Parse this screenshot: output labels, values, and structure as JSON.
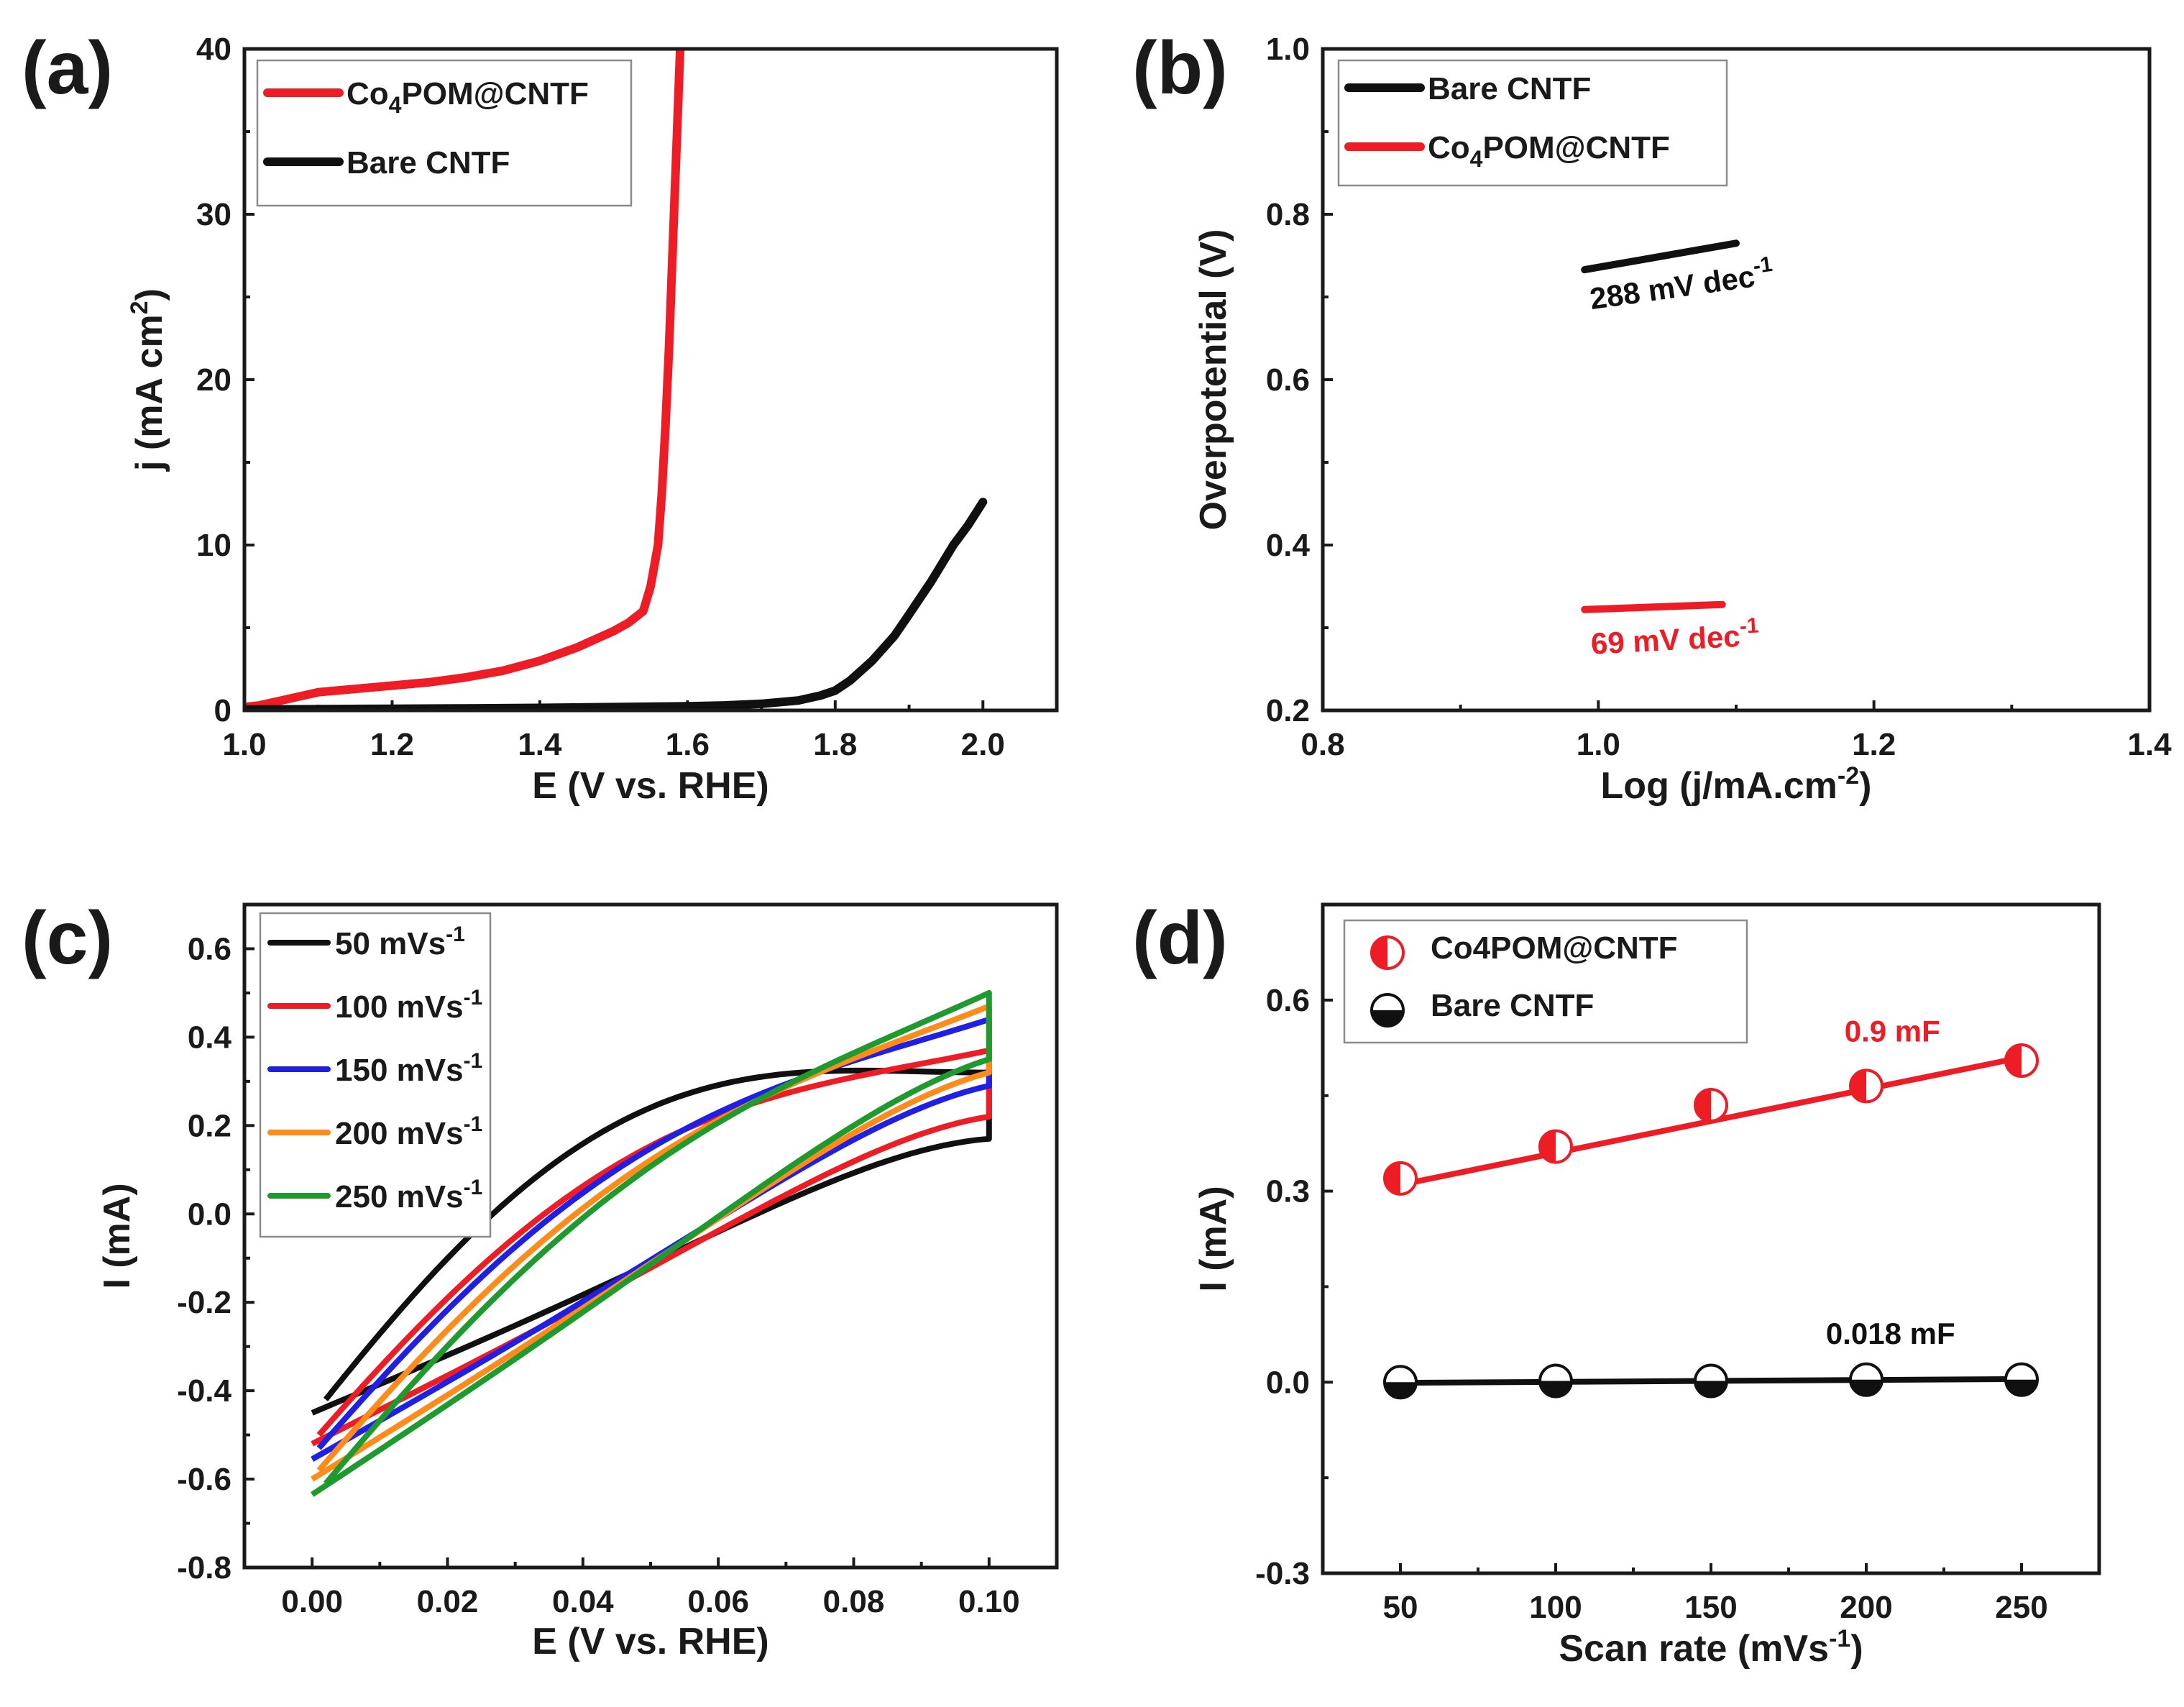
{
  "figure": {
    "colors": {
      "black": "#101010",
      "red": "#ee1c24",
      "blue": "#1f1fe6",
      "orange": "#ff8c1a",
      "green": "#1f9a2e"
    }
  },
  "chart_data": [
    {
      "panel": "(a)",
      "type": "line",
      "title": "",
      "xlabel": "E (V vs. RHE)",
      "ylabel": "j (mA cm2)",
      "ylabel_parts": {
        "pre": "j (mA cm",
        "sup": "2",
        "post": ")"
      },
      "xlim": [
        1.0,
        2.1
      ],
      "ylim": [
        0,
        40
      ],
      "xticks": [
        1.0,
        1.2,
        1.4,
        1.6,
        1.8,
        2.0
      ],
      "xtick_labels": [
        "1.0",
        "1.2",
        "1.4",
        "1.6",
        "1.8",
        "2.0"
      ],
      "yticks": [
        0,
        10,
        20,
        30,
        40
      ],
      "ytick_labels": [
        "0",
        "10",
        "20",
        "30",
        "40"
      ],
      "legend_position": "top-left",
      "series": [
        {
          "name": "Co4POM@CNTF",
          "label_parts": {
            "pre": "Co",
            "sub": "4",
            "post": "POM@CNTF"
          },
          "color": "#ee1c24",
          "x": [
            1.0,
            1.02,
            1.05,
            1.08,
            1.1,
            1.15,
            1.2,
            1.25,
            1.3,
            1.35,
            1.4,
            1.45,
            1.5,
            1.52,
            1.54,
            1.55,
            1.56,
            1.565,
            1.57,
            1.575,
            1.58,
            1.585,
            1.59
          ],
          "y": [
            0.2,
            0.3,
            0.6,
            0.9,
            1.1,
            1.3,
            1.5,
            1.7,
            2.0,
            2.4,
            3.0,
            3.8,
            4.8,
            5.3,
            6.0,
            7.5,
            10.0,
            13.0,
            17.0,
            22.0,
            28.0,
            34.0,
            40.0
          ]
        },
        {
          "name": "Bare CNTF",
          "label_parts": {
            "pre": "Bare CNTF",
            "sub": "",
            "post": ""
          },
          "color": "#101010",
          "x": [
            1.0,
            1.1,
            1.2,
            1.3,
            1.4,
            1.5,
            1.6,
            1.65,
            1.7,
            1.75,
            1.78,
            1.8,
            1.82,
            1.85,
            1.88,
            1.9,
            1.93,
            1.96,
            1.98,
            2.0
          ],
          "y": [
            0.05,
            0.08,
            0.1,
            0.12,
            0.15,
            0.2,
            0.25,
            0.3,
            0.4,
            0.6,
            0.9,
            1.2,
            1.8,
            3.0,
            4.5,
            5.8,
            7.8,
            10.0,
            11.2,
            12.6
          ]
        }
      ],
      "annotations": []
    },
    {
      "panel": "(b)",
      "type": "line",
      "title": "",
      "xlabel": "Log (j/mA.cm-2)",
      "xlabel_parts": {
        "pre": "Log (j/mA.cm",
        "sup": "-2",
        "post": ")"
      },
      "ylabel": "Overpotential (V)",
      "xlim": [
        0.8,
        1.4
      ],
      "ylim": [
        0.2,
        1.0
      ],
      "xticks": [
        0.8,
        1.0,
        1.2,
        1.4
      ],
      "xtick_labels": [
        "0.8",
        "1.0",
        "1.2",
        "1.4"
      ],
      "yticks": [
        0.2,
        0.4,
        0.6,
        0.8,
        1.0
      ],
      "ytick_labels": [
        "0.2",
        "0.4",
        "0.6",
        "0.8",
        "1.0"
      ],
      "legend_position": "top-left",
      "series": [
        {
          "name": "Bare CNTF",
          "label_parts": {
            "pre": "Bare CNTF",
            "sub": "",
            "post": ""
          },
          "color": "#101010",
          "x": [
            0.99,
            1.1
          ],
          "y": [
            0.733,
            0.765
          ]
        },
        {
          "name": "Co4POM@CNTF",
          "label_parts": {
            "pre": "Co",
            "sub": "4",
            "post": "POM@CNTF"
          },
          "color": "#ee1c24",
          "x": [
            0.99,
            1.09
          ],
          "y": [
            0.322,
            0.328
          ]
        }
      ],
      "annotations": [
        {
          "text": "288 mV dec-1",
          "pre": "288 mV dec",
          "sup": "-1",
          "x": 0.995,
          "y": 0.685,
          "angle": -8,
          "color": "#101010"
        },
        {
          "text": "69 mV dec-1",
          "pre": "69 mV dec",
          "sup": "-1",
          "x": 0.995,
          "y": 0.268,
          "angle": -3,
          "color": "#ee1c24"
        }
      ]
    },
    {
      "panel": "(c)",
      "type": "line",
      "title": "",
      "xlabel": "E (V vs. RHE)",
      "ylabel": "I (mA)",
      "xlim": [
        -0.01,
        0.11
      ],
      "ylim": [
        -0.8,
        0.7
      ],
      "xticks": [
        0.0,
        0.02,
        0.04,
        0.06,
        0.08,
        0.1
      ],
      "xtick_labels": [
        "0.00",
        "0.02",
        "0.04",
        "0.06",
        "0.08",
        "0.10"
      ],
      "yticks": [
        -0.8,
        -0.6,
        -0.4,
        -0.2,
        0.0,
        0.2,
        0.4,
        0.6
      ],
      "ytick_labels": [
        "-0.8",
        "-0.6",
        "-0.4",
        "-0.2",
        "0.0",
        "0.2",
        "0.4",
        "0.6"
      ],
      "legend_position": "top-left",
      "series": [
        {
          "name": "50 mVs-1",
          "label_parts": {
            "pre": "50 mVs",
            "sup": "-1"
          },
          "color": "#101010",
          "a": -0.42,
          "b": 0.32,
          "start_x": 0.002,
          "end_y": -0.45,
          "ymin": -0.45,
          "ymax": 0.32,
          "bulge": 0.36
        },
        {
          "name": "100 mVs-1",
          "label_parts": {
            "pre": "100 mVs",
            "sup": "-1"
          },
          "color": "#ee1c24",
          "a": -0.5,
          "b": 0.37,
          "start_x": 0.001,
          "end_y": -0.52,
          "ymin": -0.52,
          "ymax": 0.37,
          "bulge": 0.27
        },
        {
          "name": "150 mVs-1",
          "label_parts": {
            "pre": "150 mVs",
            "sup": "-1"
          },
          "color": "#1f1fe6",
          "a": -0.53,
          "b": 0.44,
          "start_x": 0.001,
          "end_y": -0.555,
          "ymin": -0.555,
          "ymax": 0.44,
          "bulge": 0.24
        },
        {
          "name": "200 mVs-1",
          "label_parts": {
            "pre": "200 mVs",
            "sup": "-1"
          },
          "color": "#ff8c1a",
          "a": -0.58,
          "b": 0.47,
          "start_x": 0.001,
          "end_y": -0.6,
          "ymin": -0.6,
          "ymax": 0.47,
          "bulge": 0.22
        },
        {
          "name": "250 mVs-1",
          "label_parts": {
            "pre": "250 mVs",
            "sup": "-1"
          },
          "color": "#1f9a2e",
          "a": -0.61,
          "b": 0.5,
          "start_x": 0.002,
          "end_y": -0.635,
          "ymin": -0.635,
          "ymax": 0.5,
          "bulge": 0.21
        }
      ],
      "annotations": []
    },
    {
      "panel": "(d)",
      "type": "scatter",
      "title": "",
      "xlabel": "Scan rate (mVs-1)",
      "xlabel_parts": {
        "pre": "Scan rate (mVs",
        "sup": "-1",
        "post": ")"
      },
      "ylabel": "I (mA)",
      "xlim": [
        25,
        275
      ],
      "ylim": [
        -0.3,
        0.75
      ],
      "xticks": [
        50,
        100,
        150,
        200,
        250
      ],
      "xtick_labels": [
        "50",
        "100",
        "150",
        "200",
        "250"
      ],
      "yticks": [
        -0.3,
        0.0,
        0.3,
        0.6
      ],
      "ytick_labels": [
        "-0.3",
        "0.0",
        "0.3",
        "0.6"
      ],
      "legend_position": "top-left",
      "series": [
        {
          "name": "Co4POM@CNTF",
          "label_parts": {
            "pre": "Co4POM@CNTF",
            "sub": "",
            "post": ""
          },
          "color": "#ee1c24",
          "x": [
            50,
            100,
            150,
            200,
            250
          ],
          "y": [
            0.32,
            0.37,
            0.435,
            0.465,
            0.505
          ],
          "fit": [
            0.31,
            0.51
          ]
        },
        {
          "name": "Bare CNTF",
          "label_parts": {
            "pre": "Bare CNTF",
            "sub": "",
            "post": ""
          },
          "color": "#101010",
          "x": [
            50,
            100,
            150,
            200,
            250
          ],
          "y": [
            0.0,
            0.002,
            0.002,
            0.004,
            0.004
          ],
          "fit": [
            -0.001,
            0.005
          ]
        }
      ],
      "annotations": [
        {
          "text": "0.9 mF",
          "pre": "0.9 mF",
          "sup": "",
          "x": 193,
          "y": 0.535,
          "angle": 0,
          "color": "#ee1c24"
        },
        {
          "text": "0.018 mF",
          "pre": "0.018 mF",
          "sup": "",
          "x": 187,
          "y": 0.06,
          "angle": 0,
          "color": "#101010"
        }
      ]
    }
  ]
}
